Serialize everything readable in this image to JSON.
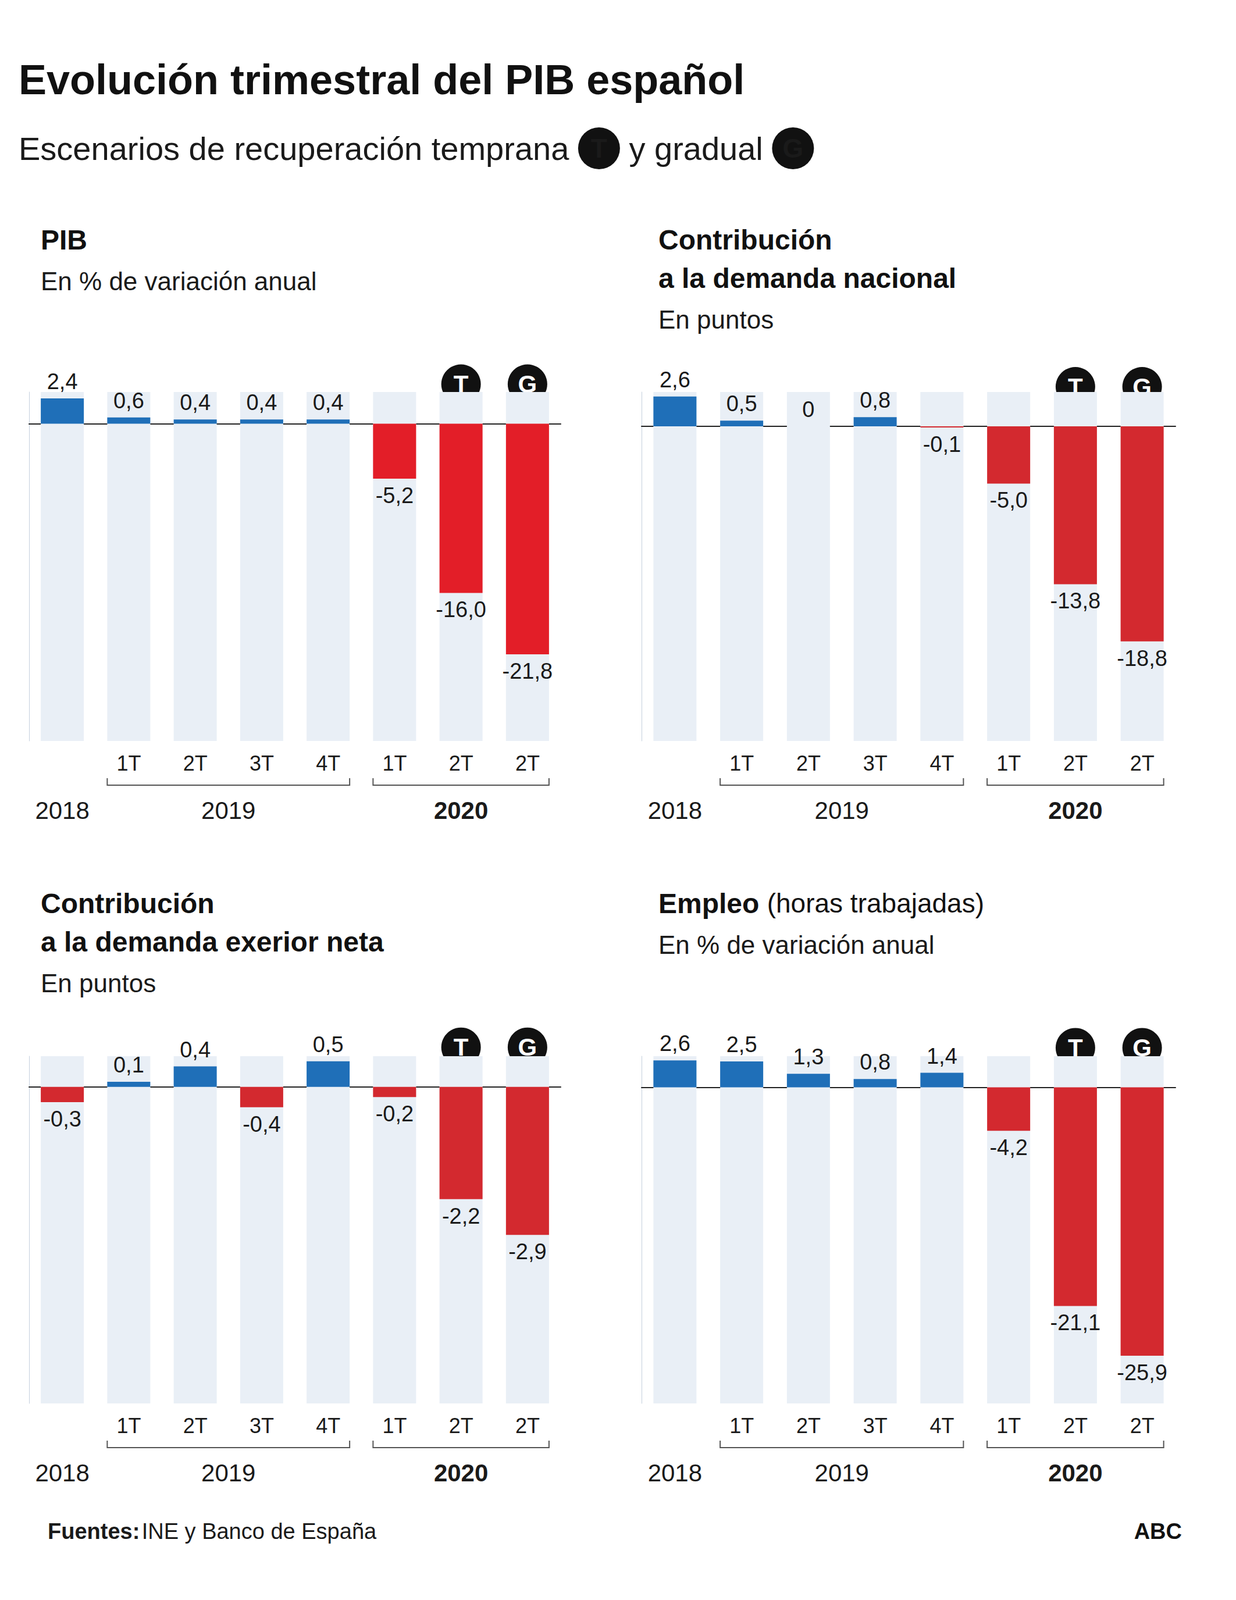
{
  "title": "Evolución trimestral del PIB español",
  "subtitle_parts": [
    {
      "text": "Escenarios de recuperación temprana"
    },
    {
      "marker": "T"
    },
    {
      "text": "y gradual"
    },
    {
      "marker": "G"
    }
  ],
  "source_label": "Fuentes:",
  "source": "INE y Banco de España",
  "credit": "ABC",
  "chart_data": [
    {
      "type": "bar",
      "title": [
        "PIB"
      ],
      "unit": "En % de variación anual",
      "categories": [
        null,
        "1T",
        "2T",
        "3T",
        "4T",
        "1T",
        "2T",
        "2T"
      ],
      "groups": [
        {
          "label": "2018",
          "count": 1
        },
        {
          "label": "2019",
          "count": 4
        },
        {
          "label": "2020",
          "count": 3
        }
      ],
      "markers": [
        null,
        null,
        null,
        null,
        null,
        null,
        "T",
        "G"
      ],
      "values": [
        2.4,
        0.6,
        0.4,
        0.4,
        0.4,
        -5.2,
        -16.0,
        -21.8
      ],
      "value_labels": [
        "2,4",
        "0,6",
        "0,4",
        "0,4",
        "0,4",
        "-5,2",
        "-16,0",
        "-21,8"
      ],
      "colors": [
        "#1f6fb8",
        "#1f6fb8",
        "#1f6fb8",
        "#1f6fb8",
        "#1f6fb8",
        "#e31e28",
        "#e31e28",
        "#e31e28"
      ],
      "ylim": [
        -30,
        3
      ],
      "grid": false,
      "data_labels": true,
      "tick_labels": "x"
    },
    {
      "type": "bar",
      "title": [
        "Contribución",
        "a la demanda nacional"
      ],
      "unit": "En puntos",
      "categories": [
        null,
        "1T",
        "2T",
        "3T",
        "4T",
        "1T",
        "2T",
        "2T"
      ],
      "groups": [
        {
          "label": "2018",
          "count": 1
        },
        {
          "label": "2019",
          "count": 4
        },
        {
          "label": "2020",
          "count": 3
        }
      ],
      "markers": [
        null,
        null,
        null,
        null,
        null,
        null,
        "T",
        "G"
      ],
      "values": [
        2.6,
        0.5,
        0,
        0.8,
        -0.1,
        -5.0,
        -13.8,
        -18.8
      ],
      "value_labels": [
        "2,6",
        "0,5",
        "0",
        "0,8",
        "-0,1",
        "-5,0",
        "-13,8",
        "-18,8"
      ],
      "colors": [
        "#1f6fb8",
        "#1f6fb8",
        "#1f6fb8",
        "#1f6fb8",
        "#d3292f",
        "#d3292f",
        "#d3292f",
        "#d3292f"
      ],
      "ylim": [
        -27.5,
        3
      ],
      "grid": false,
      "data_labels": true,
      "tick_labels": "x"
    },
    {
      "type": "bar",
      "title": [
        "Contribución",
        "a la demanda exerior neta"
      ],
      "unit": "En puntos",
      "categories": [
        null,
        "1T",
        "2T",
        "3T",
        "4T",
        "1T",
        "2T",
        "2T"
      ],
      "groups": [
        {
          "label": "2018",
          "count": 1
        },
        {
          "label": "2019",
          "count": 4
        },
        {
          "label": "2020",
          "count": 3
        }
      ],
      "markers": [
        null,
        null,
        null,
        null,
        null,
        null,
        "T",
        "G"
      ],
      "values": [
        -0.3,
        0.1,
        0.4,
        -0.4,
        0.5,
        -0.2,
        -2.2,
        -2.9
      ],
      "value_labels": [
        "-0,3",
        "0,1",
        "0,4",
        "-0,4",
        "0,5",
        "-0,2",
        "-2,2",
        "-2,9"
      ],
      "colors": [
        "#d3292f",
        "#1f6fb8",
        "#1f6fb8",
        "#d3292f",
        "#1f6fb8",
        "#d3292f",
        "#d3292f",
        "#d3292f"
      ],
      "ylim": [
        -6.2,
        0.6
      ],
      "grid": false,
      "data_labels": true,
      "tick_labels": "x"
    },
    {
      "type": "bar",
      "title": [
        "Empleo"
      ],
      "title_note": "(horas trabajadas)",
      "unit": "En % de variación anual",
      "categories": [
        null,
        "1T",
        "2T",
        "3T",
        "4T",
        "1T",
        "2T",
        "2T"
      ],
      "groups": [
        {
          "label": "2018",
          "count": 1
        },
        {
          "label": "2019",
          "count": 4
        },
        {
          "label": "2020",
          "count": 3
        }
      ],
      "markers": [
        null,
        null,
        null,
        null,
        null,
        null,
        "T",
        "G"
      ],
      "values": [
        2.6,
        2.5,
        1.3,
        0.8,
        1.4,
        -4.2,
        -21.1,
        -25.9
      ],
      "value_labels": [
        "2,6",
        "2,5",
        "1,3",
        "0,8",
        "1,4",
        "-4,2",
        "-21,1",
        "-25,9"
      ],
      "colors": [
        "#1f6fb8",
        "#1f6fb8",
        "#1f6fb8",
        "#1f6fb8",
        "#1f6fb8",
        "#d3292f",
        "#d3292f",
        "#d3292f"
      ],
      "ylim": [
        -30.5,
        3
      ],
      "grid": false,
      "data_labels": true,
      "tick_labels": "x"
    }
  ]
}
